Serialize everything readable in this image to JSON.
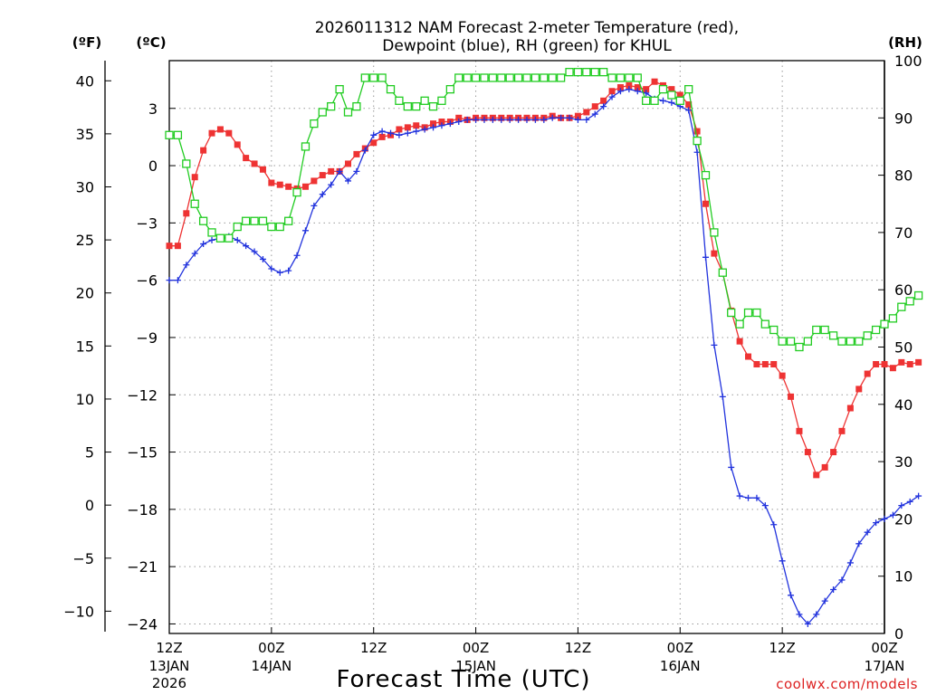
{
  "chart_data": {
    "type": "line",
    "title_line1": "2026011312 NAM Forecast 2-meter Temperature (red),",
    "title_line2": "Dewpoint (blue), RH (green) for KHUL",
    "xlabel": "Forecast Time (UTC)",
    "unit_f": "(ºF)",
    "unit_c": "(ºC)",
    "unit_rh": "(RH)",
    "watermark": "coolwx.com/models",
    "x_range_hours": [
      0,
      84
    ],
    "c_range": [
      -24.5,
      5.5
    ],
    "rh_range": [
      0,
      100
    ],
    "x_ticks": [
      {
        "h": 0,
        "line1": "12Z",
        "line2": "13JAN",
        "line3": "2026"
      },
      {
        "h": 12,
        "line1": "00Z",
        "line2": "14JAN",
        "line3": ""
      },
      {
        "h": 24,
        "line1": "12Z",
        "line2": "",
        "line3": ""
      },
      {
        "h": 36,
        "line1": "00Z",
        "line2": "15JAN",
        "line3": ""
      },
      {
        "h": 48,
        "line1": "12Z",
        "line2": "",
        "line3": ""
      },
      {
        "h": 60,
        "line1": "00Z",
        "line2": "16JAN",
        "line3": ""
      },
      {
        "h": 72,
        "line1": "12Z",
        "line2": "",
        "line3": ""
      },
      {
        "h": 84,
        "line1": "00Z",
        "line2": "17JAN",
        "line3": ""
      }
    ],
    "f_ticks": [
      40,
      35,
      30,
      25,
      20,
      15,
      10,
      5,
      0,
      -5,
      -10
    ],
    "c_ticks": [
      3,
      0,
      -3,
      -6,
      -9,
      -12,
      -15,
      -18,
      -21,
      -24
    ],
    "rh_ticks": [
      100,
      90,
      80,
      70,
      60,
      50,
      40,
      30,
      20,
      10,
      0
    ],
    "series": [
      {
        "name": "Temperature",
        "unit": "C",
        "color": "#ee3333",
        "marker": "filled-square",
        "values": [
          -4.2,
          -4.2,
          -2.5,
          -0.6,
          0.8,
          1.7,
          1.9,
          1.7,
          1.1,
          0.4,
          0.1,
          -0.2,
          -0.9,
          -1.0,
          -1.1,
          -1.2,
          -1.1,
          -0.8,
          -0.5,
          -0.3,
          -0.3,
          0.1,
          0.6,
          0.9,
          1.2,
          1.5,
          1.6,
          1.9,
          2.0,
          2.1,
          2.0,
          2.2,
          2.3,
          2.3,
          2.5,
          2.4,
          2.5,
          2.5,
          2.5,
          2.5,
          2.5,
          2.5,
          2.5,
          2.5,
          2.5,
          2.6,
          2.5,
          2.5,
          2.6,
          2.8,
          3.1,
          3.4,
          3.9,
          4.1,
          4.2,
          4.1,
          4.0,
          4.4,
          4.2,
          4.0,
          3.7,
          3.2,
          1.8,
          -2.0,
          -4.6,
          -5.6,
          -7.6,
          -9.2,
          -10.0,
          -10.4,
          -10.4,
          -10.4,
          -11.0,
          -12.1,
          -13.9,
          -15.0,
          -16.2,
          -15.8,
          -15.0,
          -13.9,
          -12.7,
          -11.7,
          -10.9,
          -10.4,
          -10.4,
          -10.6,
          -10.3,
          -10.4,
          -10.3
        ]
      },
      {
        "name": "Dewpoint",
        "unit": "C",
        "color": "#2233dd",
        "marker": "plus",
        "values": [
          -6.0,
          -6.0,
          -5.2,
          -4.6,
          -4.1,
          -3.9,
          -3.8,
          -3.7,
          -3.9,
          -4.2,
          -4.5,
          -4.9,
          -5.4,
          -5.6,
          -5.5,
          -4.7,
          -3.4,
          -2.1,
          -1.5,
          -1.0,
          -0.3,
          -0.8,
          -0.3,
          0.8,
          1.6,
          1.8,
          1.7,
          1.6,
          1.7,
          1.8,
          1.9,
          2.0,
          2.1,
          2.2,
          2.3,
          2.4,
          2.4,
          2.4,
          2.4,
          2.4,
          2.4,
          2.4,
          2.4,
          2.4,
          2.4,
          2.5,
          2.5,
          2.5,
          2.4,
          2.4,
          2.7,
          3.1,
          3.6,
          3.9,
          4.0,
          3.9,
          3.8,
          3.5,
          3.4,
          3.3,
          3.1,
          2.9,
          0.7,
          -4.8,
          -9.4,
          -12.1,
          -15.8,
          -17.3,
          -17.4,
          -17.4,
          -17.8,
          -18.8,
          -20.7,
          -22.5,
          -23.5,
          -24.0,
          -23.5,
          -22.8,
          -22.2,
          -21.7,
          -20.8,
          -19.8,
          -19.2,
          -18.7,
          -18.5,
          -18.3,
          -17.8,
          -17.6,
          -17.3
        ]
      },
      {
        "name": "RH",
        "unit": "%",
        "color": "#22cc22",
        "marker": "open-square",
        "values": [
          87,
          87,
          82,
          75,
          72,
          70,
          69,
          69,
          71,
          72,
          72,
          72,
          71,
          71,
          72,
          77,
          85,
          89,
          91,
          92,
          95,
          91,
          92,
          97,
          97,
          97,
          95,
          93,
          92,
          92,
          93,
          92,
          93,
          95,
          97,
          97,
          97,
          97,
          97,
          97,
          97,
          97,
          97,
          97,
          97,
          97,
          97,
          98,
          98,
          98,
          98,
          98,
          97,
          97,
          97,
          97,
          93,
          93,
          95,
          94,
          93,
          95,
          86,
          80,
          70,
          63,
          56,
          54,
          56,
          56,
          54,
          53,
          51,
          51,
          50,
          51,
          53,
          53,
          52,
          51,
          51,
          51,
          52,
          53,
          54,
          55,
          57,
          58,
          59
        ]
      }
    ]
  }
}
